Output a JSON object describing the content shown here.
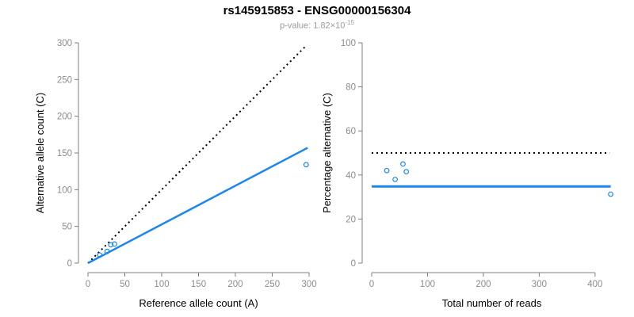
{
  "header": {
    "title": "rs145915853 - ENSG00000156304",
    "p_value_text": "p-value: 1.82×10",
    "p_value_exponent": "-15"
  },
  "colors": {
    "accent_blue": "#1C86EE",
    "axis_gray": "#7f7f7f",
    "tick_label_gray": "#8c8c8c",
    "axis_title_black": "#000000",
    "subtitle_gray": "#9a9a9a",
    "background": "#ffffff"
  },
  "chart_data": [
    {
      "type": "scatter",
      "name": "allele-counts-plot",
      "xlabel": "Reference allele count (A)",
      "ylabel": "Alternative allele count (C)",
      "xlim": [
        0,
        300
      ],
      "ylim": [
        0,
        300
      ],
      "xticks": [
        0,
        50,
        100,
        150,
        200,
        250,
        300
      ],
      "yticks": [
        0,
        50,
        100,
        150,
        200,
        250,
        300
      ],
      "grid": false,
      "legend": null,
      "points": [
        [
          16,
          11
        ],
        [
          26,
          16
        ],
        [
          31,
          25
        ],
        [
          36,
          26
        ],
        [
          296,
          134
        ]
      ],
      "lines": [
        {
          "name": "identity-line",
          "style": "dotted",
          "color": "#000000",
          "width": 2,
          "x1": 0,
          "y1": 0,
          "x2": 297,
          "y2": 297
        },
        {
          "name": "fit-line",
          "style": "solid",
          "color": "#1C86EE",
          "width": 2.5,
          "x1": 0,
          "y1": 0,
          "x2": 298,
          "y2": 157
        }
      ]
    },
    {
      "type": "scatter",
      "name": "percentage-alternative-plot",
      "xlabel": "Total number of reads",
      "ylabel": "Percentage alternative (C)",
      "xlim": [
        0,
        430
      ],
      "ylim": [
        0,
        100
      ],
      "xticks": [
        0,
        100,
        200,
        300,
        400
      ],
      "yticks": [
        0,
        20,
        40,
        60,
        80,
        100
      ],
      "grid": false,
      "legend": null,
      "points": [
        [
          27,
          42
        ],
        [
          42,
          38
        ],
        [
          56,
          45
        ],
        [
          62,
          41.5
        ],
        [
          428,
          31.3
        ]
      ],
      "lines": [
        {
          "name": "fifty-percent-line",
          "style": "dotted",
          "color": "#000000",
          "width": 2,
          "x1": 0,
          "y1": 50,
          "x2": 426,
          "y2": 50
        },
        {
          "name": "mean-percentage-line",
          "style": "solid",
          "color": "#1C86EE",
          "width": 3,
          "x1": 0,
          "y1": 34.8,
          "x2": 428,
          "y2": 34.8
        }
      ]
    }
  ]
}
